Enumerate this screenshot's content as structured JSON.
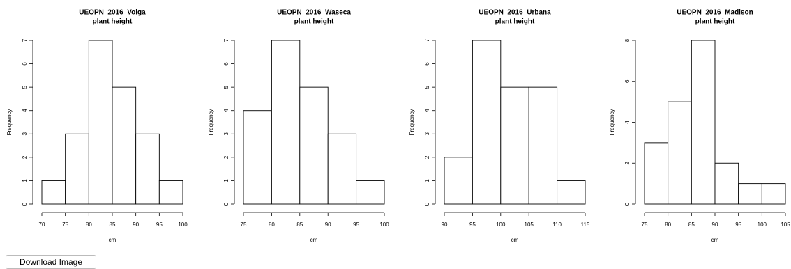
{
  "chart_data": [
    {
      "type": "histogram",
      "title": "UEOPN_2016_Volga",
      "subtitle": "plant height",
      "xlabel": "cm",
      "ylabel": "Frequency",
      "bins": [
        70,
        75,
        80,
        85,
        90,
        95,
        100
      ],
      "counts": [
        1,
        3,
        7,
        5,
        3,
        1
      ],
      "xlim": [
        70,
        100
      ],
      "xticks": [
        70,
        75,
        80,
        85,
        90,
        95,
        100
      ],
      "ylim": [
        0,
        7
      ],
      "yticks": [
        0,
        1,
        2,
        3,
        4,
        5,
        6,
        7
      ],
      "color": "#ffffff"
    },
    {
      "type": "histogram",
      "title": "UEOPN_2016_Waseca",
      "subtitle": "plant height",
      "xlabel": "cm",
      "ylabel": "Frequency",
      "bins": [
        75,
        80,
        85,
        90,
        95,
        100
      ],
      "counts": [
        4,
        7,
        5,
        3,
        1
      ],
      "xlim": [
        75,
        100
      ],
      "xticks": [
        75,
        80,
        85,
        90,
        95,
        100
      ],
      "ylim": [
        0,
        7
      ],
      "yticks": [
        0,
        1,
        2,
        3,
        4,
        5,
        6,
        7
      ],
      "color": "#ffffff"
    },
    {
      "type": "histogram",
      "title": "UEOPN_2016_Urbana",
      "subtitle": "plant height",
      "xlabel": "cm",
      "ylabel": "Frequency",
      "bins": [
        90,
        95,
        100,
        105,
        110,
        115
      ],
      "counts": [
        2,
        7,
        5,
        5,
        1
      ],
      "xlim": [
        90,
        115
      ],
      "xticks": [
        90,
        95,
        100,
        105,
        110,
        115
      ],
      "ylim": [
        0,
        7
      ],
      "yticks": [
        0,
        1,
        2,
        3,
        4,
        5,
        6,
        7
      ],
      "color": "#ffffff"
    },
    {
      "type": "histogram",
      "title": "UEOPN_2016_Madison",
      "subtitle": "plant height",
      "xlabel": "cm",
      "ylabel": "Frequency",
      "bins": [
        75,
        80,
        85,
        90,
        95,
        100,
        105
      ],
      "counts": [
        3,
        5,
        8,
        2,
        1,
        1
      ],
      "xlim": [
        75,
        105
      ],
      "xticks": [
        75,
        80,
        85,
        90,
        95,
        100,
        105
      ],
      "ylim": [
        0,
        8
      ],
      "yticks": [
        0,
        2,
        4,
        6,
        8
      ],
      "color": "#ffffff"
    }
  ],
  "button": "Download Image"
}
